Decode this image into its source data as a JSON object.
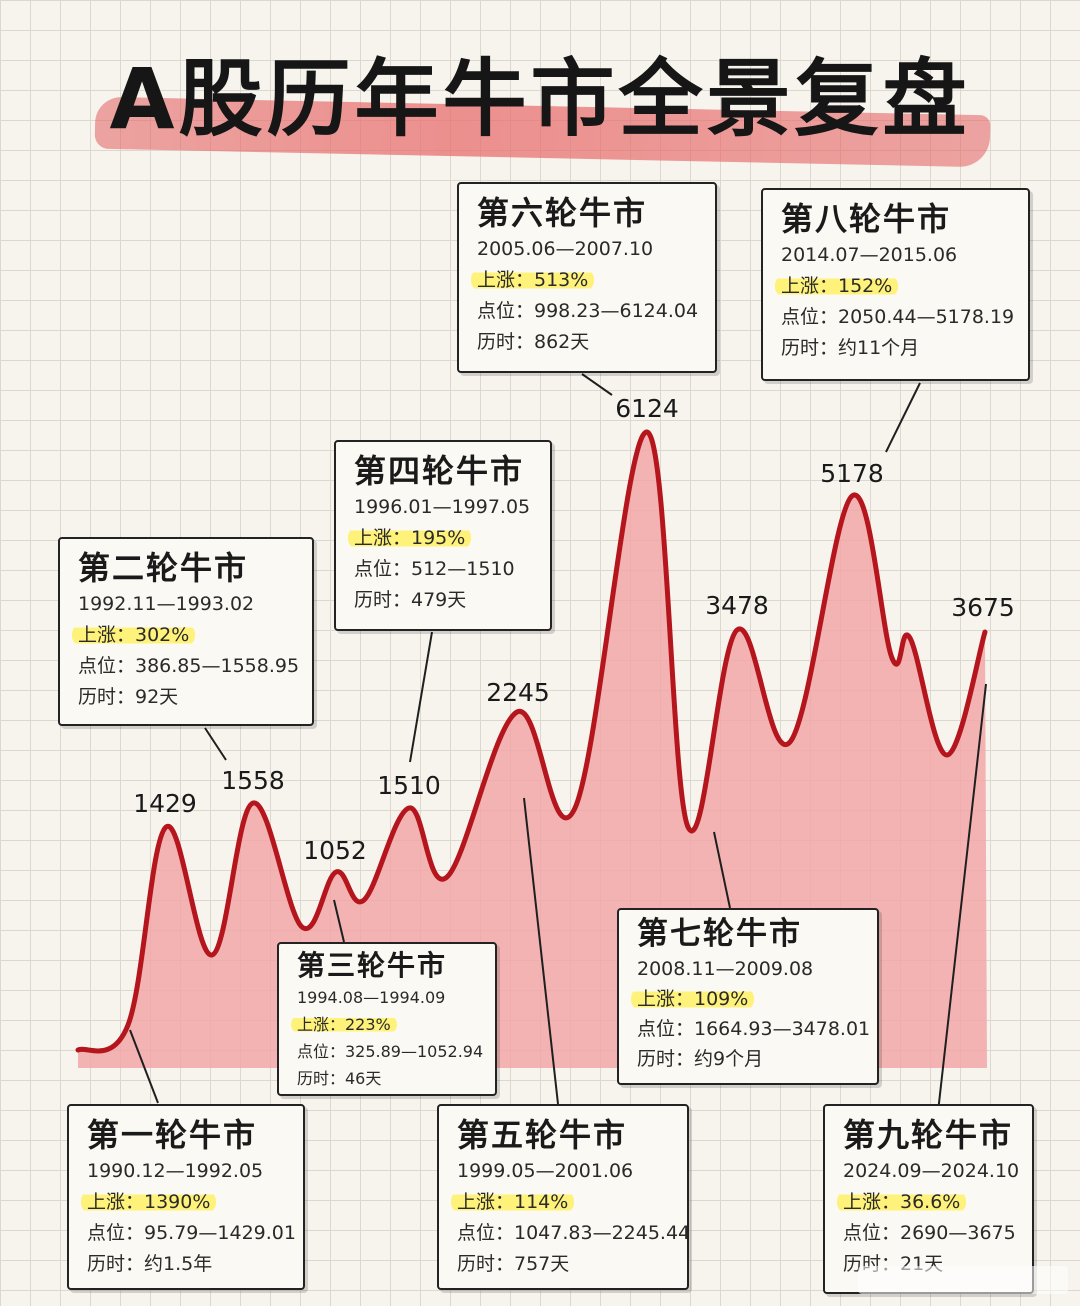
{
  "title": "A股历年牛市全景复盘",
  "chart_data": {
    "type": "area",
    "title": "A股历年牛市全景复盘",
    "peaks": [
      {
        "label": "1429",
        "value": 1429
      },
      {
        "label": "1558",
        "value": 1558
      },
      {
        "label": "1052",
        "value": 1052
      },
      {
        "label": "1510",
        "value": 1510
      },
      {
        "label": "2245",
        "value": 2245
      },
      {
        "label": "6124",
        "value": 6124
      },
      {
        "label": "3478",
        "value": 3478
      },
      {
        "label": "5178",
        "value": 5178
      },
      {
        "label": "3675",
        "value": 3675
      }
    ],
    "bull_markets": [
      {
        "name": "第一轮牛市",
        "period": "1990.12—1992.05",
        "gain": "上涨：1390%",
        "points": "点位：95.79—1429.01",
        "duration": "历时：约1.5年"
      },
      {
        "name": "第二轮牛市",
        "period": "1992.11—1993.02",
        "gain": "上涨：302%",
        "points": "点位：386.85—1558.95",
        "duration": "历时：92天"
      },
      {
        "name": "第三轮牛市",
        "period": "1994.08—1994.09",
        "gain": "上涨：223%",
        "points": "点位：325.89—1052.94",
        "duration": "历时：46天"
      },
      {
        "name": "第四轮牛市",
        "period": "1996.01—1997.05",
        "gain": "上涨：195%",
        "points": "点位：512—1510",
        "duration": "历时：479天"
      },
      {
        "name": "第五轮牛市",
        "period": "1999.05—2001.06",
        "gain": "上涨：114%",
        "points": "点位：1047.83—2245.44",
        "duration": "历时：757天"
      },
      {
        "name": "第六轮牛市",
        "period": "2005.06—2007.10",
        "gain": "上涨：513%",
        "points": "点位：998.23—6124.04",
        "duration": "历时：862天"
      },
      {
        "name": "第七轮牛市",
        "period": "2008.11—2009.08",
        "gain": "上涨：109%",
        "points": "点位：1664.93—3478.01",
        "duration": "历时：约9个月"
      },
      {
        "name": "第八轮牛市",
        "period": "2014.07—2015.06",
        "gain": "上涨：152%",
        "points": "点位：2050.44—5178.19",
        "duration": "历时：约11个月"
      },
      {
        "name": "第九轮牛市",
        "period": "2024.09—2024.10",
        "gain": "上涨：36.6%",
        "points": "点位：2690—3675",
        "duration": "历时：21天"
      }
    ]
  },
  "colors": {
    "line": "#b5161e",
    "fill": "#f2a7a7",
    "highlight": "#fff27a"
  }
}
